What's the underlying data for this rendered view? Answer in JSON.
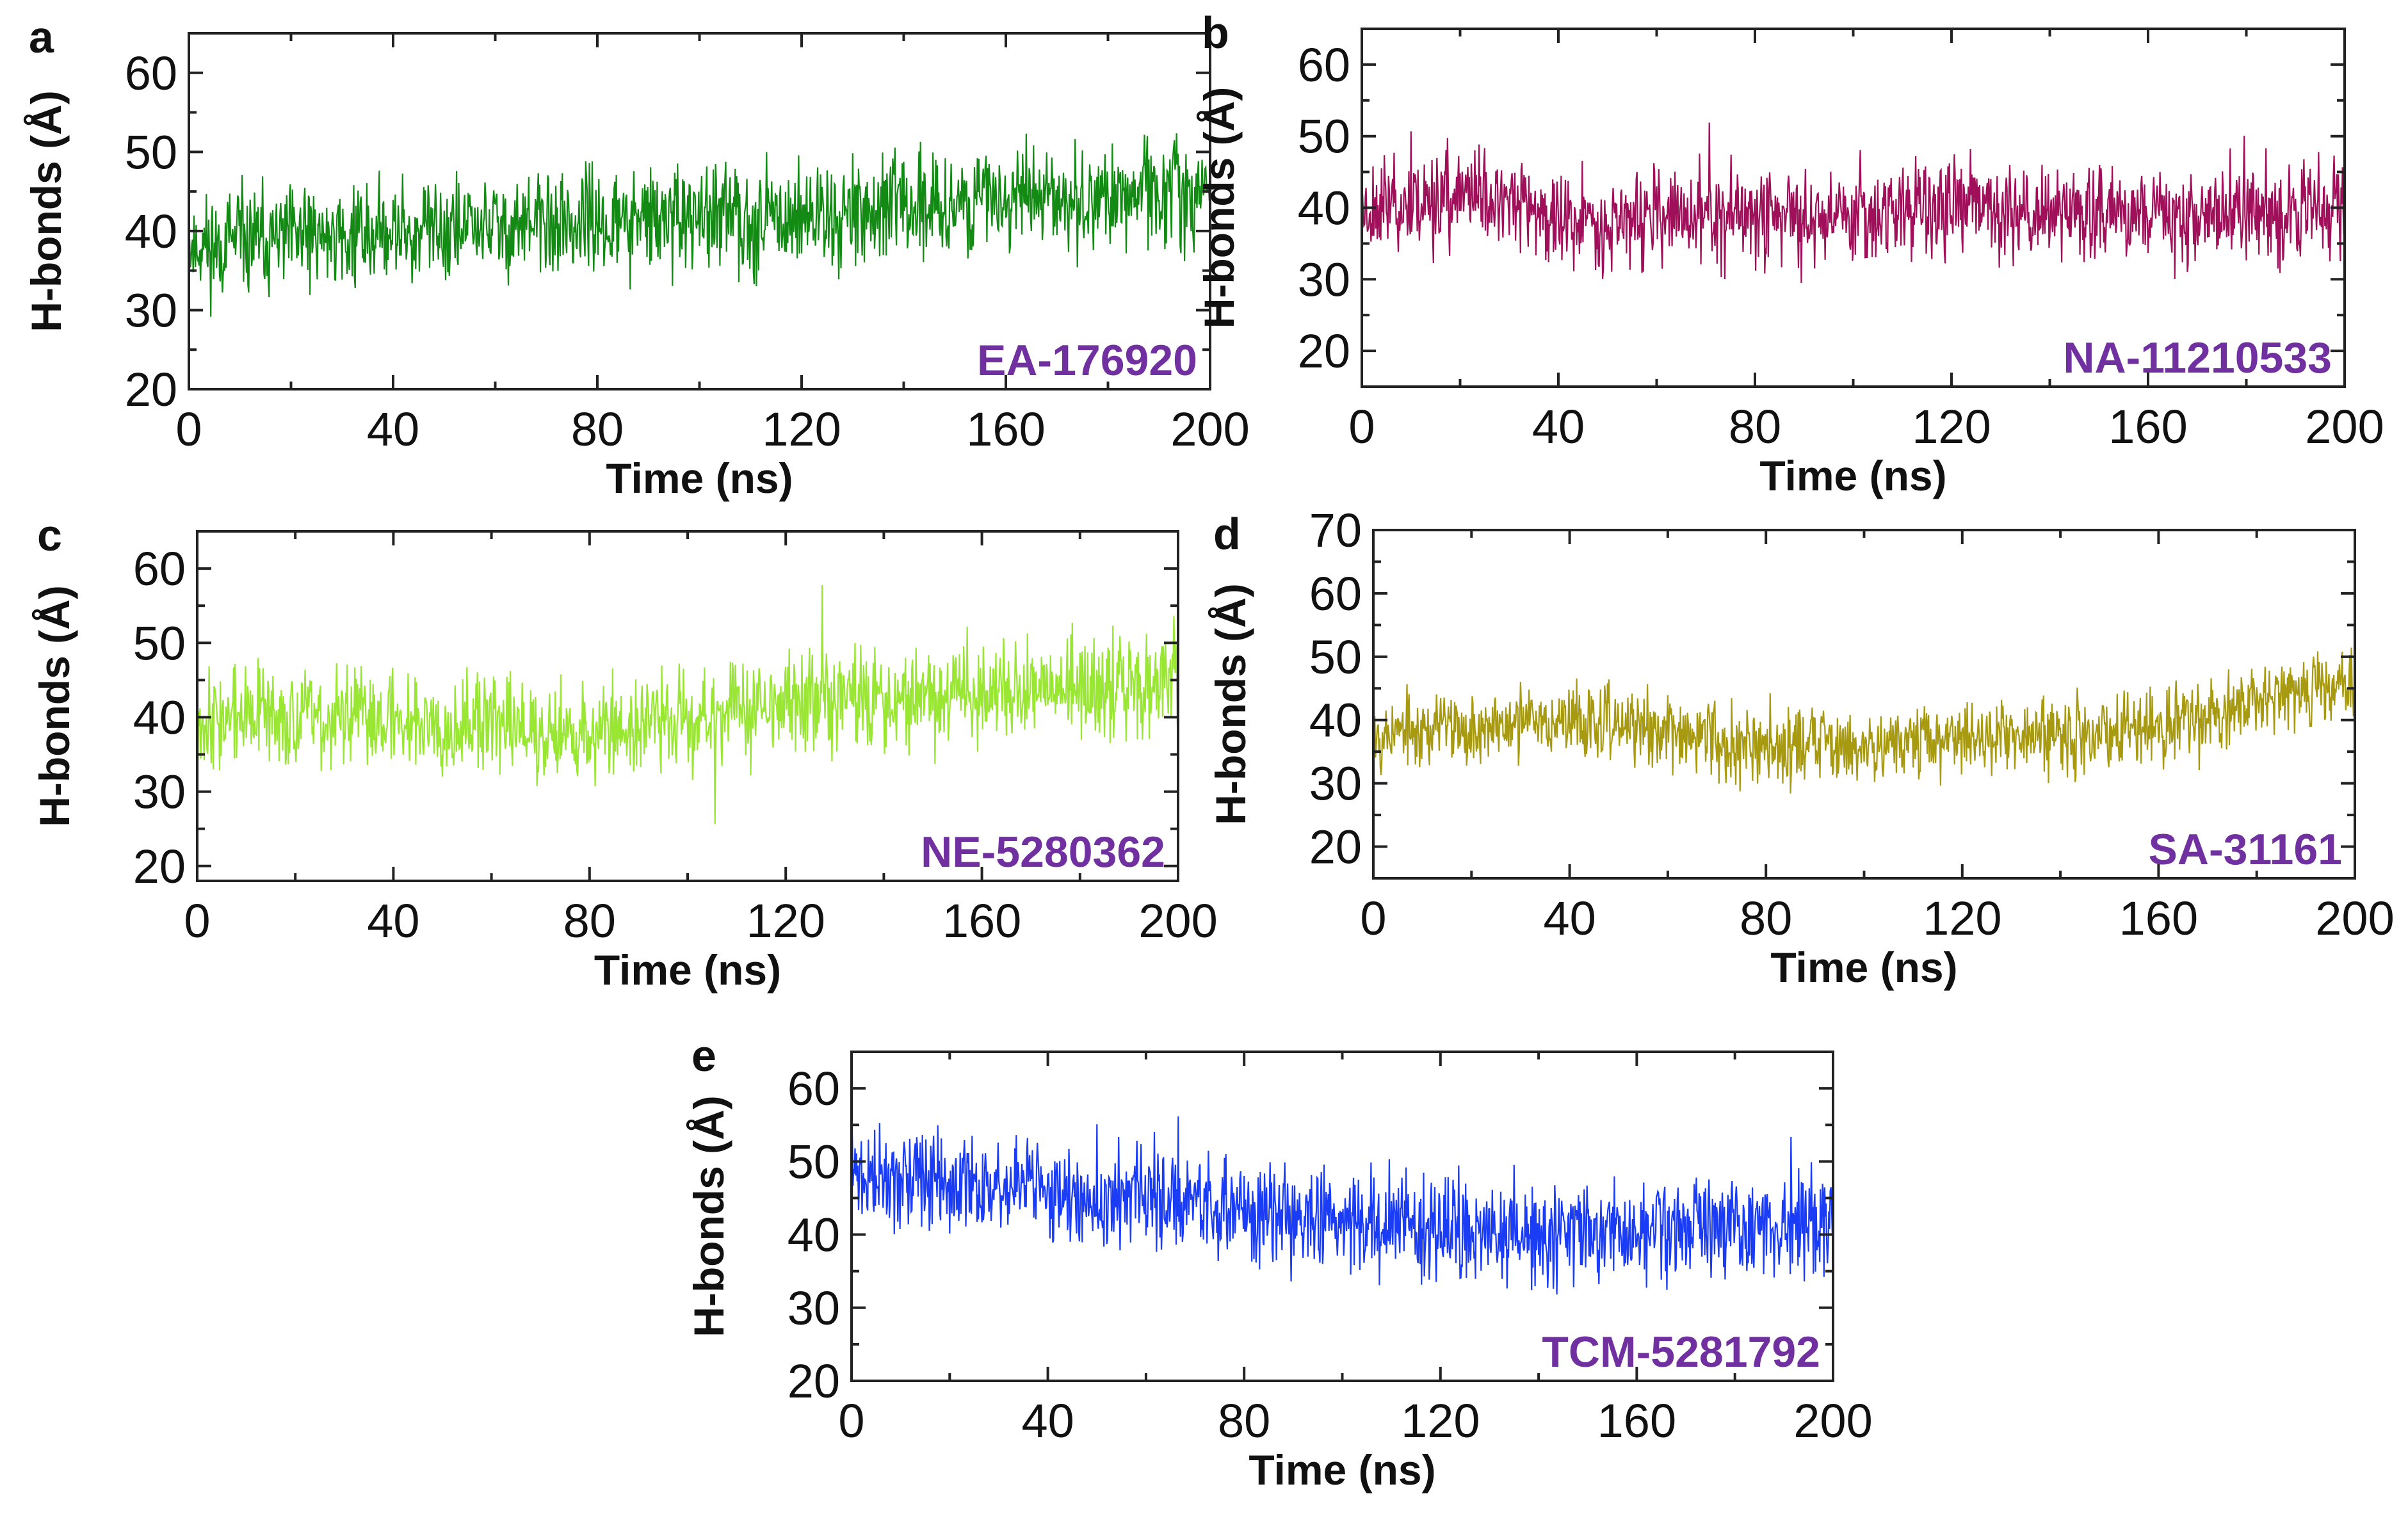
{
  "figure": {
    "description_label": "H-bonds vs Time"
  },
  "chart_data": [
    {
      "panel": "a",
      "type": "line",
      "title": "",
      "xlabel": "Time (ns)",
      "ylabel": "H-bonds (Å)",
      "xlim": [
        0,
        200
      ],
      "ylim": [
        20,
        65
      ],
      "xticks": [
        0,
        40,
        80,
        120,
        160,
        200
      ],
      "yticks": [
        20,
        30,
        40,
        50,
        60
      ],
      "annotation": "EA-176920",
      "color": "#138a13",
      "label_color": "#7030a0",
      "series": [
        {
          "name": "EA-176920",
          "trend": [
            [
              0,
              38
            ],
            [
              40,
              40
            ],
            [
              80,
              41
            ],
            [
              120,
              42
            ],
            [
              160,
              44
            ],
            [
              200,
              45
            ]
          ],
          "spread": 9,
          "seed": 11
        }
      ]
    },
    {
      "panel": "b",
      "type": "line",
      "title": "",
      "xlabel": "Time (ns)",
      "ylabel": "H-bonds (Å)",
      "xlim": [
        0,
        200
      ],
      "ylim": [
        15,
        65
      ],
      "xticks": [
        0,
        40,
        80,
        120,
        160,
        200
      ],
      "yticks": [
        20,
        30,
        40,
        50,
        60
      ],
      "annotation": "NA-11210533",
      "color": "#a0105a",
      "label_color": "#7030a0",
      "series": [
        {
          "name": "NA-11210533",
          "trend": [
            [
              0,
              40
            ],
            [
              25,
              42
            ],
            [
              40,
              38
            ],
            [
              80,
              39
            ],
            [
              120,
              40
            ],
            [
              160,
              39
            ],
            [
              200,
              40
            ]
          ],
          "spread": 9,
          "seed": 23
        }
      ]
    },
    {
      "panel": "c",
      "type": "line",
      "title": "",
      "xlabel": "Time (ns)",
      "ylabel": "H-bonds (Å)",
      "xlim": [
        0,
        200
      ],
      "ylim": [
        18,
        65
      ],
      "xticks": [
        0,
        40,
        80,
        120,
        160,
        200
      ],
      "yticks": [
        20,
        30,
        40,
        50,
        60
      ],
      "annotation": "NE-5280362",
      "color": "#99e633",
      "label_color": "#7030a0",
      "series": [
        {
          "name": "NE-5280362",
          "trend": [
            [
              0,
              40
            ],
            [
              40,
              40
            ],
            [
              80,
              38
            ],
            [
              120,
              42
            ],
            [
              160,
              43
            ],
            [
              200,
              45
            ]
          ],
          "spread": 9,
          "seed": 37
        }
      ]
    },
    {
      "panel": "d",
      "type": "line",
      "title": "",
      "xlabel": "Time (ns)",
      "ylabel": "H-bonds (Å)",
      "xlim": [
        0,
        200
      ],
      "ylim": [
        15,
        70
      ],
      "xticks": [
        0,
        40,
        80,
        120,
        160,
        200
      ],
      "yticks": [
        20,
        30,
        40,
        50,
        60,
        70
      ],
      "annotation": "SA-31161",
      "color": "#a89a10",
      "label_color": "#7030a0",
      "series": [
        {
          "name": "SA-31161",
          "trend": [
            [
              0,
              38
            ],
            [
              40,
              40
            ],
            [
              80,
              36
            ],
            [
              120,
              37
            ],
            [
              160,
              39
            ],
            [
              200,
              46
            ]
          ],
          "spread": 8,
          "seed": 53
        }
      ]
    },
    {
      "panel": "e",
      "type": "line",
      "title": "",
      "xlabel": "Time (ns)",
      "ylabel": "H-bonds (Å)",
      "xlim": [
        0,
        200
      ],
      "ylim": [
        20,
        65
      ],
      "xticks": [
        0,
        40,
        80,
        120,
        160,
        200
      ],
      "yticks": [
        20,
        30,
        40,
        50,
        60
      ],
      "annotation": "TCM-5281792",
      "color": "#1a3cf5",
      "label_color": "#7030a0",
      "series": [
        {
          "name": "TCM-5281792",
          "trend": [
            [
              0,
              48
            ],
            [
              40,
              46
            ],
            [
              80,
              43
            ],
            [
              120,
              41
            ],
            [
              160,
              40
            ],
            [
              200,
              42
            ]
          ],
          "spread": 9,
          "seed": 71
        }
      ]
    }
  ]
}
